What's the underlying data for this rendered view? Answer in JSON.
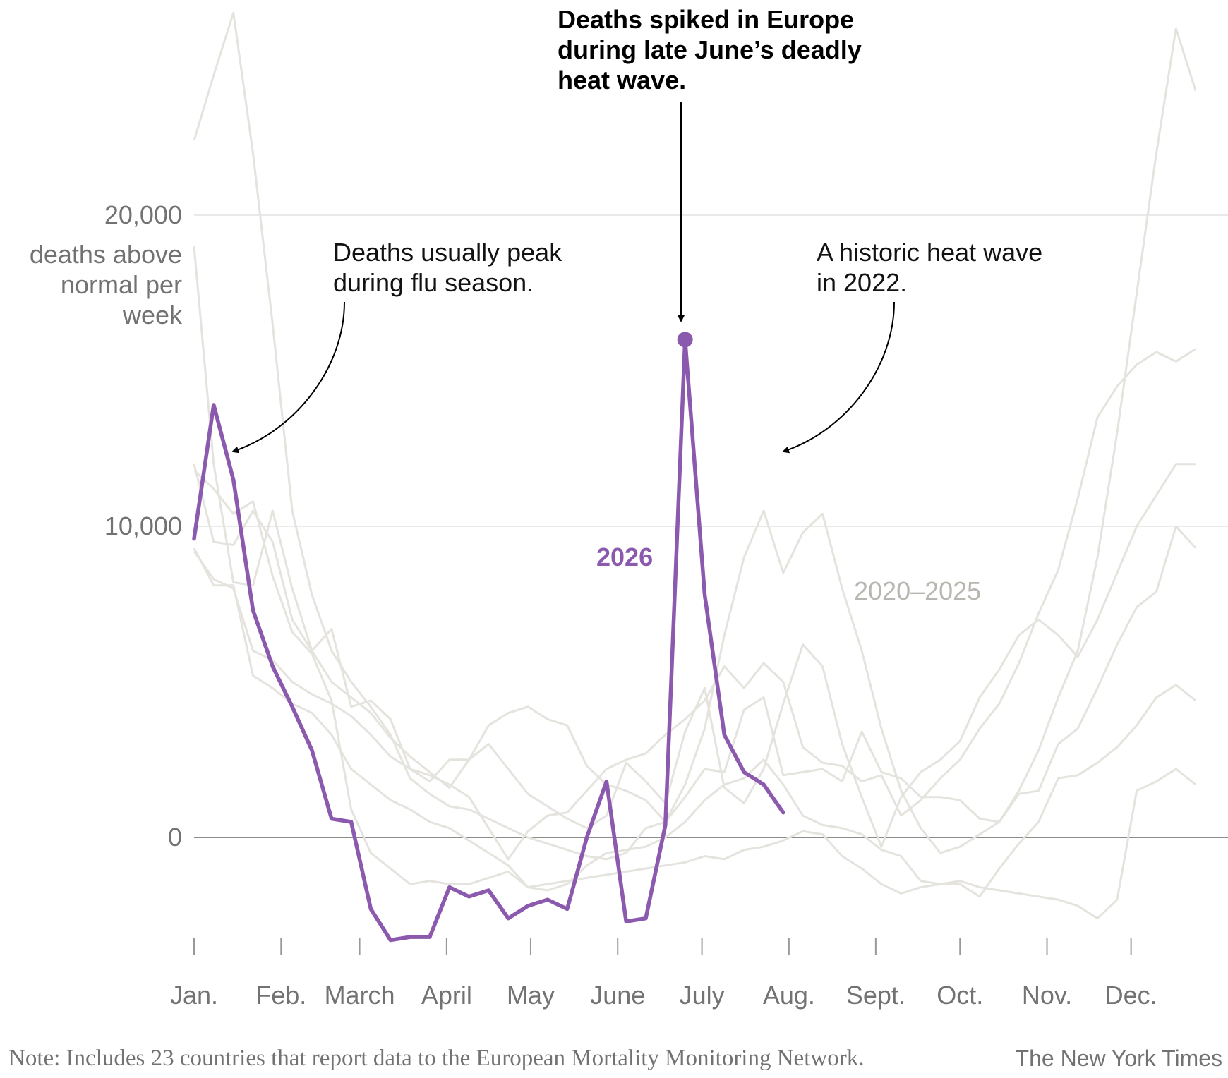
{
  "chart_data": {
    "type": "line",
    "ylabel": "deaths above normal per week",
    "yticks": [
      0,
      10000,
      20000
    ],
    "ytick_labels": [
      "0",
      "10,000",
      "20,000"
    ],
    "ylim": [
      -4500,
      27000
    ],
    "xlim": [
      0,
      52
    ],
    "month_ticks": [
      {
        "label": "Jan.",
        "week": 0
      },
      {
        "label": "Feb.",
        "week": 4.43
      },
      {
        "label": "March",
        "week": 8.43
      },
      {
        "label": "April",
        "week": 12.86
      },
      {
        "label": "May",
        "week": 17.14
      },
      {
        "label": "June",
        "week": 21.57
      },
      {
        "label": "July",
        "week": 25.86
      },
      {
        "label": "Aug.",
        "week": 30.29
      },
      {
        "label": "Sept.",
        "week": 34.71
      },
      {
        "label": "Oct.",
        "week": 39
      },
      {
        "label": "Nov.",
        "week": 43.43
      },
      {
        "label": "Dec.",
        "week": 47.71
      }
    ],
    "series": [
      {
        "name": "2026",
        "color": "#8b59ad",
        "values": [
          9600,
          13900,
          11500,
          7300,
          5500,
          4200,
          2800,
          600,
          500,
          -2300,
          -3300,
          -3200,
          -3200,
          -1600,
          -1900,
          -1700,
          -2600,
          -2200,
          -2000,
          -2300,
          0,
          1800,
          -2700,
          -2600,
          400,
          16000,
          7800,
          3300,
          2100,
          1700,
          800
        ]
      }
    ],
    "background_series": {
      "label": "2020–2025",
      "color": "#e5e3dd",
      "lines": [
        [
          22400,
          24500,
          26500,
          22000,
          16500,
          10500,
          7800,
          6000,
          5000,
          4200,
          3300,
          1900,
          1400,
          1000,
          900,
          600,
          300,
          0,
          -200,
          -400,
          -600,
          -700,
          -500,
          300,
          500,
          1700,
          3500,
          6500,
          9000,
          10500,
          8500,
          9800,
          10400,
          8000,
          6000,
          3500,
          1500,
          300,
          -500,
          -300,
          100,
          500,
          1500,
          2800,
          4500,
          6000,
          9000,
          13000,
          17500,
          22000,
          26000,
          24000
        ],
        [
          12000,
          9500,
          9400,
          10500,
          9500,
          7000,
          6000,
          5000,
          4500,
          4000,
          3200,
          2600,
          2100,
          1600,
          2500,
          3000,
          2200,
          1400,
          1000,
          600,
          300,
          700,
          2400,
          1800,
          1100,
          3400,
          4800,
          1600,
          1100,
          2200,
          4300,
          6200,
          5500,
          3000,
          1300,
          -300,
          1300,
          2100,
          2500,
          3100,
          4500,
          5400,
          6500,
          7000,
          6500,
          5800,
          7000,
          8500,
          10000,
          11000,
          12000,
          12000
        ],
        [
          19000,
          12000,
          8200,
          8100,
          10500,
          8000,
          6000,
          6700,
          4200,
          4400,
          3800,
          2200,
          1800,
          2500,
          2500,
          3600,
          4000,
          4200,
          3800,
          3600,
          2300,
          1700,
          1500,
          1200,
          500,
          1300,
          2200,
          2100,
          4100,
          4500,
          2000,
          2100,
          2200,
          1800,
          3400,
          2100,
          1900,
          1300,
          1300,
          1200,
          600,
          500,
          1400,
          1500,
          3000,
          3500,
          4800,
          6200,
          7400,
          7900,
          10000,
          9300
        ],
        [
          9200,
          8300,
          8000,
          6000,
          5700,
          5000,
          4600,
          4300,
          3900,
          3300,
          2600,
          2200,
          2000,
          1700,
          1300,
          300,
          -700,
          200,
          700,
          800,
          1500,
          2200,
          2500,
          2700,
          3300,
          3800,
          4400,
          5500,
          4800,
          5600,
          5000,
          2900,
          2400,
          2300,
          1800,
          2000,
          700,
          1200,
          1900,
          2500,
          3500,
          4300,
          5600,
          7200,
          8600,
          10900,
          13500,
          14500,
          15200,
          15600,
          15300,
          15700
        ],
        [
          9300,
          8100,
          8100,
          5200,
          4800,
          4300,
          4000,
          3300,
          2200,
          1700,
          1200,
          900,
          500,
          300,
          -100,
          -500,
          -900,
          -1600,
          -1700,
          -1500,
          -900,
          -500,
          -400,
          -300,
          0,
          500,
          1200,
          1700,
          1900,
          2500,
          1700,
          700,
          400,
          300,
          100,
          -400,
          -600,
          -1400,
          -1500,
          -1500,
          -1900,
          -1000,
          -200,
          500,
          1900,
          2000,
          2400,
          2900,
          3600,
          4500,
          4900,
          4400
        ],
        [
          11800,
          11200,
          10400,
          10800,
          8400,
          6600,
          5900,
          4400,
          900,
          -500,
          -1000,
          -1500,
          -1400,
          -1500,
          -1500,
          -1300,
          -1100,
          -1600,
          -1500,
          -1400,
          -1300,
          -1200,
          -1100,
          -1000,
          -900,
          -800,
          -600,
          -700,
          -400,
          -300,
          -100,
          200,
          100,
          -600,
          -1000,
          -1500,
          -1800,
          -1600,
          -1500,
          -1400,
          -1600,
          -1700,
          -1800,
          -1900,
          -2000,
          -2200,
          -2600,
          -2000,
          1500,
          1800,
          2200,
          1700
        ]
      ]
    },
    "annotations": {
      "flu": "Deaths usually peak during flu season.",
      "flu_lines": [
        "Deaths usually peak",
        "during flu season."
      ],
      "spike_lines": [
        "Deaths spiked in Europe",
        "during late June’s deadly",
        "heat wave."
      ],
      "historic_lines": [
        "A historic heat wave",
        "in 2022."
      ]
    },
    "ylabel_lines": [
      "deaths above",
      "normal per",
      "week"
    ]
  },
  "footer": {
    "note": "Note: Includes 23 countries that report data to the European Mortality Monitoring Network.",
    "credit": "The New York Times"
  }
}
